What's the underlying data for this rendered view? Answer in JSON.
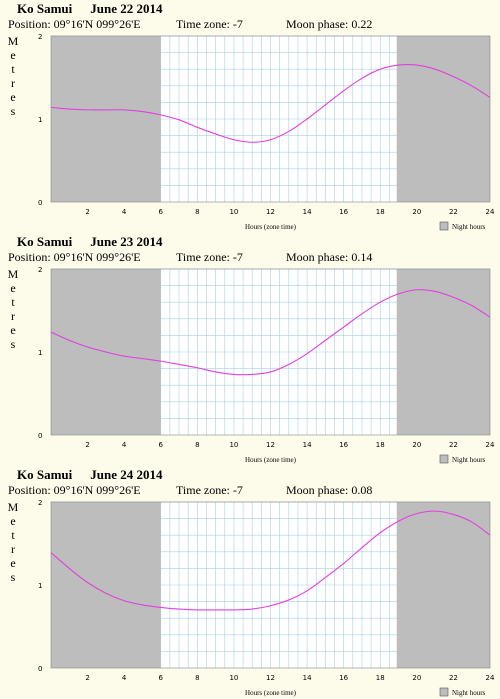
{
  "chart_data": [
    {
      "type": "line",
      "location": "Ko Samui",
      "date": "June 22 2014",
      "position": "Position: 09°16'N 099°26'E",
      "timezone": "Time zone: -7",
      "moon": "Moon phase: 0.22",
      "ylabel": "Metres",
      "xlabel": "Hours (zone time)",
      "legend": "Night hours",
      "xlim": [
        0,
        24
      ],
      "ylim": [
        0,
        2
      ],
      "y_ticks": [
        "0",
        "1",
        "2"
      ],
      "x_ticks": [
        "2",
        "4",
        "6",
        "8",
        "10",
        "12",
        "14",
        "16",
        "18",
        "20",
        "22",
        "24"
      ],
      "night_hours": [
        [
          0,
          6
        ],
        [
          18.9,
          24
        ]
      ],
      "series": [
        {
          "x": [
            0,
            1,
            2,
            3,
            4,
            5,
            6,
            7,
            8,
            9,
            10,
            11,
            12,
            13,
            14,
            15,
            16,
            17,
            18,
            19,
            20,
            21,
            22,
            23,
            24
          ],
          "y": [
            1.14,
            1.12,
            1.11,
            1.11,
            1.11,
            1.09,
            1.05,
            0.99,
            0.9,
            0.82,
            0.75,
            0.72,
            0.75,
            0.85,
            1.0,
            1.17,
            1.34,
            1.49,
            1.6,
            1.65,
            1.65,
            1.6,
            1.51,
            1.4,
            1.26
          ]
        }
      ]
    },
    {
      "type": "line",
      "location": "Ko Samui",
      "date": "June 23 2014",
      "position": "Position: 09°16'N 099°26'E",
      "timezone": "Time zone: -7",
      "moon": "Moon phase: 0.14",
      "ylabel": "Metres",
      "xlabel": "Hours (zone time)",
      "legend": "Night hours",
      "xlim": [
        0,
        24
      ],
      "ylim": [
        0,
        2
      ],
      "y_ticks": [
        "0",
        "1",
        "2"
      ],
      "x_ticks": [
        "2",
        "4",
        "6",
        "8",
        "10",
        "12",
        "14",
        "16",
        "18",
        "20",
        "22",
        "24"
      ],
      "night_hours": [
        [
          0,
          6
        ],
        [
          18.9,
          24
        ]
      ],
      "series": [
        {
          "x": [
            0,
            1,
            2,
            3,
            4,
            5,
            6,
            7,
            8,
            9,
            10,
            11,
            12,
            13,
            14,
            15,
            16,
            17,
            18,
            19,
            20,
            21,
            22,
            23,
            24
          ],
          "y": [
            1.24,
            1.14,
            1.06,
            1.0,
            0.95,
            0.92,
            0.89,
            0.85,
            0.81,
            0.76,
            0.73,
            0.73,
            0.76,
            0.85,
            0.98,
            1.14,
            1.3,
            1.46,
            1.6,
            1.7,
            1.75,
            1.73,
            1.66,
            1.56,
            1.42
          ]
        }
      ]
    },
    {
      "type": "line",
      "location": "Ko Samui",
      "date": "June 24 2014",
      "position": "Position: 09°16'N 099°26'E",
      "timezone": "Time zone: -7",
      "moon": "Moon phase: 0.08",
      "ylabel": "Metres",
      "xlabel": "Hours (zone time)",
      "legend": "Night hours",
      "xlim": [
        0,
        24
      ],
      "ylim": [
        0,
        2
      ],
      "y_ticks": [
        "0",
        "1",
        "2"
      ],
      "x_ticks": [
        "2",
        "4",
        "6",
        "8",
        "10",
        "12",
        "14",
        "16",
        "18",
        "20",
        "22",
        "24"
      ],
      "night_hours": [
        [
          0,
          6
        ],
        [
          18.9,
          24
        ]
      ],
      "series": [
        {
          "x": [
            0,
            1,
            2,
            3,
            4,
            5,
            6,
            7,
            8,
            9,
            10,
            11,
            12,
            13,
            14,
            15,
            16,
            17,
            18,
            19,
            20,
            21,
            22,
            23,
            24
          ],
          "y": [
            1.39,
            1.2,
            1.03,
            0.9,
            0.81,
            0.76,
            0.73,
            0.71,
            0.7,
            0.7,
            0.7,
            0.71,
            0.75,
            0.82,
            0.93,
            1.09,
            1.26,
            1.45,
            1.63,
            1.77,
            1.86,
            1.89,
            1.85,
            1.76,
            1.6
          ]
        }
      ]
    }
  ],
  "colors": {
    "background": "#fdfbe9",
    "night": "#bdbdbd",
    "grid": "#a8cfe8",
    "tide_line": "#e040e0",
    "text": "#000000"
  }
}
